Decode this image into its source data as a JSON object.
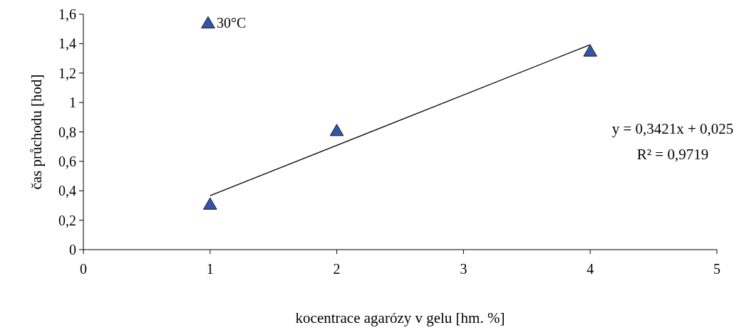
{
  "chart_data": {
    "type": "scatter",
    "xlabel": "kocentrace agarózy v gelu [hm. %]",
    "ylabel": "čas průchodu [hod]",
    "xlim": [
      0,
      5
    ],
    "xticks": [
      0,
      1,
      2,
      3,
      4,
      5
    ],
    "ylim": [
      0,
      1.6
    ],
    "yticks": [
      0,
      {
        "value": 0.2,
        "label": "0,2"
      },
      {
        "value": 0.4,
        "label": "0,4"
      },
      {
        "value": 0.6,
        "label": "0,6"
      },
      {
        "value": 0.8,
        "label": "0,8"
      },
      1,
      {
        "value": 1.2,
        "label": "1,2"
      },
      {
        "value": 1.4,
        "label": "1,4"
      },
      {
        "value": 1.6,
        "label": "1,6"
      }
    ],
    "grid": false,
    "legend": "top left",
    "marker": "triangle",
    "series": [
      {
        "name": "30°C",
        "color": "#3355a5",
        "x": [
          1,
          2,
          4
        ],
        "values": [
          0.31,
          0.81,
          1.35
        ]
      },
      {
        "type": "line",
        "color": "#000000",
        "marker": "none",
        "x": [
          1,
          4
        ],
        "values": [
          0.367,
          1.393
        ]
      }
    ],
    "annotations": [
      "y = 0,3421x + 0,025",
      "R² = 0,9719"
    ]
  }
}
